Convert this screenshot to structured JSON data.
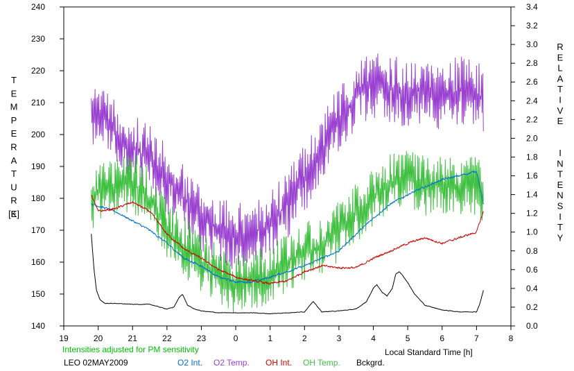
{
  "chart_data": {
    "type": "line",
    "title": "",
    "xlabel": "Local Standard Time [h]",
    "ylabel_left": "TEMPERATURE",
    "ylabel_left_unit": "[K]",
    "ylabel_right": "RELATIVE INTENSITY",
    "xlim": [
      19,
      32
    ],
    "x_ticks": [
      19,
      20,
      21,
      22,
      23,
      24,
      25,
      26,
      27,
      28,
      29,
      30,
      31,
      32
    ],
    "x_tick_labels": [
      "19",
      "20",
      "21",
      "22",
      "23",
      "0",
      "1",
      "2",
      "3",
      "4",
      "5",
      "6",
      "7",
      "8"
    ],
    "ylim_left": [
      140,
      240
    ],
    "y_ticks_left": [
      140,
      150,
      160,
      170,
      180,
      190,
      200,
      210,
      220,
      230,
      240
    ],
    "y_tick_labels_left": [
      "140",
      "150",
      "160",
      "170",
      "180",
      "190",
      "200",
      "210",
      "220",
      "230",
      "240"
    ],
    "ylim_right": [
      0.0,
      3.4
    ],
    "y_ticks_right": [
      0.0,
      0.2,
      0.4,
      0.6,
      0.8,
      1.0,
      1.2,
      1.4,
      1.6,
      1.8,
      2.0,
      2.2,
      2.4,
      2.6,
      2.8,
      3.0,
      3.2,
      3.4
    ],
    "y_tick_labels_right": [
      "0.0",
      "0.2",
      "0.4",
      "0.6",
      "0.8",
      "1.0",
      "1.2",
      "1.4",
      "1.6",
      "1.8",
      "2.0",
      "2.2",
      "2.4",
      "2.6",
      "2.8",
      "3.0",
      "3.2",
      "3.4"
    ],
    "grid": false,
    "annotation": "Intensities adjusted for PM sensitivity",
    "annotation_color": "#00c000",
    "station": "LEO 02MAY2009",
    "legend_position": "bottom",
    "series": [
      {
        "name": "O2 Int.",
        "axis": "right",
        "color": "#0070d0",
        "noise": 0.02,
        "x": [
          19.8,
          20.0,
          20.5,
          21.0,
          21.5,
          22.0,
          22.5,
          23.0,
          23.5,
          24.0,
          24.5,
          25.0,
          25.5,
          26.0,
          26.5,
          27.0,
          27.5,
          28.0,
          28.5,
          29.0,
          29.5,
          30.0,
          30.5,
          31.0,
          31.2
        ],
        "y": [
          1.3,
          1.28,
          1.22,
          1.12,
          1.02,
          0.88,
          0.72,
          0.64,
          0.52,
          0.47,
          0.47,
          0.52,
          0.58,
          0.64,
          0.72,
          0.8,
          0.98,
          1.15,
          1.3,
          1.4,
          1.48,
          1.56,
          1.6,
          1.65,
          1.3
        ]
      },
      {
        "name": "O2 Temp.",
        "axis": "left",
        "color": "#9a40d0",
        "noise": 9,
        "x": [
          19.8,
          20.2,
          20.5,
          21.0,
          21.5,
          22.0,
          22.5,
          23.0,
          23.5,
          24.0,
          24.5,
          25.0,
          25.5,
          26.0,
          26.5,
          27.0,
          27.5,
          28.0,
          28.5,
          29.0,
          29.5,
          30.0,
          30.5,
          31.0,
          31.2
        ],
        "y": [
          208,
          205,
          200,
          196,
          192,
          186,
          180,
          174,
          170,
          168,
          169,
          172,
          178,
          186,
          195,
          205,
          212,
          216,
          214,
          213,
          214,
          212,
          214,
          213,
          210
        ]
      },
      {
        "name": "OH Int.",
        "axis": "right",
        "color": "#d00000",
        "noise": 0.02,
        "x": [
          19.8,
          20.0,
          20.5,
          21.0,
          21.5,
          22.0,
          22.5,
          23.0,
          23.5,
          24.0,
          24.5,
          25.0,
          25.5,
          26.0,
          26.5,
          27.0,
          27.5,
          28.0,
          28.5,
          29.0,
          29.5,
          30.0,
          30.5,
          31.0,
          31.2
        ],
        "y": [
          1.4,
          1.22,
          1.25,
          1.32,
          1.22,
          0.98,
          0.82,
          0.72,
          0.6,
          0.52,
          0.48,
          0.45,
          0.48,
          0.58,
          0.64,
          0.62,
          0.62,
          0.72,
          0.8,
          0.88,
          0.94,
          0.88,
          0.94,
          1.0,
          1.22
        ]
      },
      {
        "name": "OH Temp.",
        "axis": "left",
        "color": "#40c040",
        "noise": 8,
        "x": [
          19.8,
          20.0,
          20.5,
          21.0,
          21.5,
          22.0,
          22.5,
          23.0,
          23.5,
          24.0,
          24.5,
          25.0,
          25.5,
          26.0,
          26.5,
          27.0,
          27.5,
          28.0,
          28.5,
          29.0,
          29.5,
          30.0,
          30.5,
          31.0,
          31.2
        ],
        "y": [
          178,
          182,
          184,
          185,
          180,
          170,
          165,
          160,
          156,
          153,
          154,
          156,
          160,
          163,
          165,
          170,
          175,
          180,
          185,
          186,
          184,
          185,
          184,
          184,
          182
        ]
      },
      {
        "name": "Bckgrd.",
        "axis": "right",
        "color": "#000000",
        "noise": 0.005,
        "x": [
          19.8,
          19.88,
          19.95,
          20.05,
          20.2,
          20.5,
          21.0,
          21.5,
          22.0,
          22.2,
          22.35,
          22.45,
          22.6,
          22.8,
          23.0,
          23.5,
          24.0,
          24.5,
          25.0,
          25.5,
          26.0,
          26.15,
          26.25,
          26.5,
          27.0,
          27.5,
          27.8,
          28.0,
          28.1,
          28.25,
          28.4,
          28.55,
          28.65,
          28.75,
          28.85,
          29.0,
          29.2,
          29.5,
          30.0,
          30.5,
          31.0,
          31.1,
          31.2
        ],
        "y": [
          0.98,
          0.6,
          0.38,
          0.28,
          0.24,
          0.24,
          0.23,
          0.23,
          0.18,
          0.2,
          0.3,
          0.34,
          0.22,
          0.18,
          0.16,
          0.14,
          0.14,
          0.14,
          0.13,
          0.14,
          0.15,
          0.22,
          0.26,
          0.15,
          0.16,
          0.18,
          0.26,
          0.4,
          0.44,
          0.36,
          0.32,
          0.4,
          0.55,
          0.58,
          0.54,
          0.46,
          0.34,
          0.22,
          0.17,
          0.15,
          0.15,
          0.24,
          0.38
        ]
      }
    ]
  }
}
